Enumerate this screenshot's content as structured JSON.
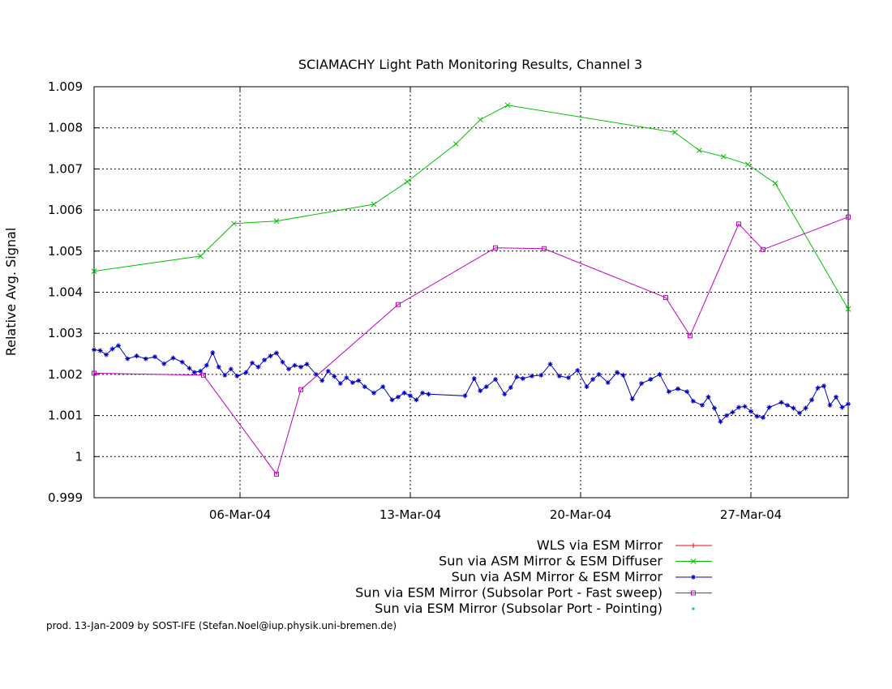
{
  "chart_data": {
    "type": "line",
    "title": "SCIAMACHY Light Path Monitoring Results, Channel 3",
    "xlabel": "",
    "ylabel": "Relative Avg. Signal",
    "xlim": [
      "2004-02-29T00:00",
      "2004-03-31T00:00"
    ],
    "ylim": [
      0.999,
      1.009
    ],
    "yticks": [
      0.999,
      1,
      1.001,
      1.002,
      1.003,
      1.004,
      1.005,
      1.006,
      1.007,
      1.008,
      1.009
    ],
    "ytick_labels": [
      "0.999",
      "1",
      "1.001",
      "1.002",
      "1.003",
      "1.004",
      "1.005",
      "1.006",
      "1.007",
      "1.008",
      "1.009"
    ],
    "xticks": [
      "2004-03-06",
      "2004-03-13",
      "2004-03-20",
      "2004-03-27"
    ],
    "xtick_labels": [
      "06-Mar-04",
      "13-Mar-04",
      "20-Mar-04",
      "27-Mar-04"
    ],
    "grid": true,
    "legend_position": "bottom",
    "footer": "prod. 13-Jan-2009 by SOST-IFE (Stefan.Noel@iup.physik.uni-bremen.de)",
    "series": [
      {
        "name": "WLS via ESM Mirror",
        "color": "#ff0000",
        "marker": "plus",
        "points": []
      },
      {
        "name": "Sun via ASM Mirror & ESM Diffuser",
        "color": "#00c000",
        "marker": "cross",
        "points": [
          [
            "2004-02-29T00:00",
            1.00451
          ],
          [
            "2004-03-04T09:00",
            1.00488
          ],
          [
            "2004-03-05T18:00",
            1.00567
          ],
          [
            "2004-03-07T12:00",
            1.00573
          ],
          [
            "2004-03-11T12:00",
            1.00614
          ],
          [
            "2004-03-12T21:00",
            1.00669
          ],
          [
            "2004-03-14T21:00",
            1.00761
          ],
          [
            "2004-03-15T21:00",
            1.0082
          ],
          [
            "2004-03-17T00:00",
            1.00855
          ],
          [
            "2004-03-23T21:00",
            1.00789
          ],
          [
            "2004-03-24T21:00",
            1.00745
          ],
          [
            "2004-03-25T21:00",
            1.0073
          ],
          [
            "2004-03-26T21:00",
            1.00711
          ],
          [
            "2004-03-28T00:00",
            1.00665
          ],
          [
            "2004-03-31T00:00",
            1.00359
          ]
        ]
      },
      {
        "name": "Sun via ASM Mirror & ESM Mirror",
        "color": "#0000c0",
        "marker": "star",
        "points": [
          [
            "2004-02-29T00:00",
            1.0026
          ],
          [
            "2004-02-29T06:00",
            1.00258
          ],
          [
            "2004-02-29T12:00",
            1.00248
          ],
          [
            "2004-02-29T18:00",
            1.00262
          ],
          [
            "2004-03-01T00:00",
            1.0027
          ],
          [
            "2004-03-01T09:00",
            1.00238
          ],
          [
            "2004-03-01T18:00",
            1.00245
          ],
          [
            "2004-03-02T03:00",
            1.00238
          ],
          [
            "2004-03-02T12:00",
            1.00243
          ],
          [
            "2004-03-02T21:00",
            1.00226
          ],
          [
            "2004-03-03T06:00",
            1.0024
          ],
          [
            "2004-03-03T15:00",
            1.0023
          ],
          [
            "2004-03-03T22:00",
            1.00215
          ],
          [
            "2004-03-04T03:00",
            1.00205
          ],
          [
            "2004-03-04T09:00",
            1.00208
          ],
          [
            "2004-03-04T15:00",
            1.00222
          ],
          [
            "2004-03-04T21:00",
            1.00253
          ],
          [
            "2004-03-05T03:00",
            1.00218
          ],
          [
            "2004-03-05T09:00",
            1.00198
          ],
          [
            "2004-03-05T15:00",
            1.00213
          ],
          [
            "2004-03-05T21:00",
            1.00196
          ],
          [
            "2004-03-06T06:00",
            1.00205
          ],
          [
            "2004-03-06T12:00",
            1.00228
          ],
          [
            "2004-03-06T18:00",
            1.00218
          ],
          [
            "2004-03-07T00:00",
            1.00235
          ],
          [
            "2004-03-07T06:00",
            1.00245
          ],
          [
            "2004-03-07T12:00",
            1.00252
          ],
          [
            "2004-03-07T18:00",
            1.0023
          ],
          [
            "2004-03-08T00:00",
            1.00213
          ],
          [
            "2004-03-08T06:00",
            1.00222
          ],
          [
            "2004-03-08T12:00",
            1.00218
          ],
          [
            "2004-03-08T18:00",
            1.00225
          ],
          [
            "2004-03-09T03:00",
            1.002
          ],
          [
            "2004-03-09T09:00",
            1.00185
          ],
          [
            "2004-03-09T15:00",
            1.00208
          ],
          [
            "2004-03-09T21:00",
            1.00195
          ],
          [
            "2004-03-10T03:00",
            1.00178
          ],
          [
            "2004-03-10T09:00",
            1.00192
          ],
          [
            "2004-03-10T15:00",
            1.0018
          ],
          [
            "2004-03-10T21:00",
            1.00185
          ],
          [
            "2004-03-11T03:00",
            1.0017
          ],
          [
            "2004-03-11T12:00",
            1.00155
          ],
          [
            "2004-03-11T21:00",
            1.0017
          ],
          [
            "2004-03-12T06:00",
            1.00138
          ],
          [
            "2004-03-12T12:00",
            1.00145
          ],
          [
            "2004-03-12T18:00",
            1.00155
          ],
          [
            "2004-03-13T00:00",
            1.00148
          ],
          [
            "2004-03-13T06:00",
            1.00138
          ],
          [
            "2004-03-13T12:00",
            1.00155
          ],
          [
            "2004-03-13T18:00",
            1.00152
          ],
          [
            "2004-03-15T06:00",
            1.00148
          ],
          [
            "2004-03-15T15:00",
            1.0019
          ],
          [
            "2004-03-15T21:00",
            1.0016
          ],
          [
            "2004-03-16T03:00",
            1.0017
          ],
          [
            "2004-03-16T12:00",
            1.00188
          ],
          [
            "2004-03-16T21:00",
            1.00152
          ],
          [
            "2004-03-17T03:00",
            1.00168
          ],
          [
            "2004-03-17T09:00",
            1.00194
          ],
          [
            "2004-03-17T15:00",
            1.0019
          ],
          [
            "2004-03-18T00:00",
            1.00196
          ],
          [
            "2004-03-18T09:00",
            1.00198
          ],
          [
            "2004-03-18T18:00",
            1.00225
          ],
          [
            "2004-03-19T03:00",
            1.00196
          ],
          [
            "2004-03-19T12:00",
            1.00192
          ],
          [
            "2004-03-19T21:00",
            1.0021
          ],
          [
            "2004-03-20T06:00",
            1.0017
          ],
          [
            "2004-03-20T12:00",
            1.00188
          ],
          [
            "2004-03-20T18:00",
            1.002
          ],
          [
            "2004-03-21T03:00",
            1.0018
          ],
          [
            "2004-03-21T12:00",
            1.00205
          ],
          [
            "2004-03-21T18:00",
            1.00198
          ],
          [
            "2004-03-22T03:00",
            1.0014
          ],
          [
            "2004-03-22T12:00",
            1.00178
          ],
          [
            "2004-03-22T21:00",
            1.00188
          ],
          [
            "2004-03-23T06:00",
            1.002
          ],
          [
            "2004-03-23T15:00",
            1.00158
          ],
          [
            "2004-03-24T00:00",
            1.00165
          ],
          [
            "2004-03-24T09:00",
            1.00158
          ],
          [
            "2004-03-24T15:00",
            1.00135
          ],
          [
            "2004-03-25T00:00",
            1.00125
          ],
          [
            "2004-03-25T06:00",
            1.00145
          ],
          [
            "2004-03-25T12:00",
            1.00118
          ],
          [
            "2004-03-25T18:00",
            1.00085
          ],
          [
            "2004-03-26T00:00",
            1.001
          ],
          [
            "2004-03-26T06:00",
            1.00108
          ],
          [
            "2004-03-26T12:00",
            1.0012
          ],
          [
            "2004-03-26T18:00",
            1.00122
          ],
          [
            "2004-03-27T00:00",
            1.0011
          ],
          [
            "2004-03-27T06:00",
            1.00098
          ],
          [
            "2004-03-27T12:00",
            1.00095
          ],
          [
            "2004-03-27T18:00",
            1.0012
          ],
          [
            "2004-03-28T06:00",
            1.00132
          ],
          [
            "2004-03-28T12:00",
            1.00125
          ],
          [
            "2004-03-28T18:00",
            1.00118
          ],
          [
            "2004-03-29T00:00",
            1.00106
          ],
          [
            "2004-03-29T06:00",
            1.00118
          ],
          [
            "2004-03-29T12:00",
            1.00138
          ],
          [
            "2004-03-29T18:00",
            1.00167
          ],
          [
            "2004-03-30T00:00",
            1.00172
          ],
          [
            "2004-03-30T06:00",
            1.00125
          ],
          [
            "2004-03-30T12:00",
            1.00145
          ],
          [
            "2004-03-30T18:00",
            1.0012
          ],
          [
            "2004-03-31T00:00",
            1.00128
          ]
        ]
      },
      {
        "name": "Sun via ESM Mirror (Subsolar Port - Fast sweep)",
        "color": "#c000c0",
        "marker": "square",
        "points": [
          [
            "2004-02-29T00:00",
            1.00203
          ],
          [
            "2004-03-04T12:00",
            1.00198
          ],
          [
            "2004-03-07T12:00",
            0.99957
          ],
          [
            "2004-03-08T12:00",
            1.00163
          ],
          [
            "2004-03-12T12:00",
            1.0037
          ],
          [
            "2004-03-16T12:00",
            1.00508
          ],
          [
            "2004-03-18T12:00",
            1.00506
          ],
          [
            "2004-03-23T12:00",
            1.00387
          ],
          [
            "2004-03-24T12:00",
            1.00294
          ],
          [
            "2004-03-26T12:00",
            1.00566
          ],
          [
            "2004-03-27T12:00",
            1.00504
          ],
          [
            "2004-03-31T00:00",
            1.00583
          ]
        ]
      },
      {
        "name": "Sun via ESM Mirror (Subsolar Port - Pointing)",
        "color": "#00c0c0",
        "marker": "dot",
        "points": []
      }
    ]
  }
}
